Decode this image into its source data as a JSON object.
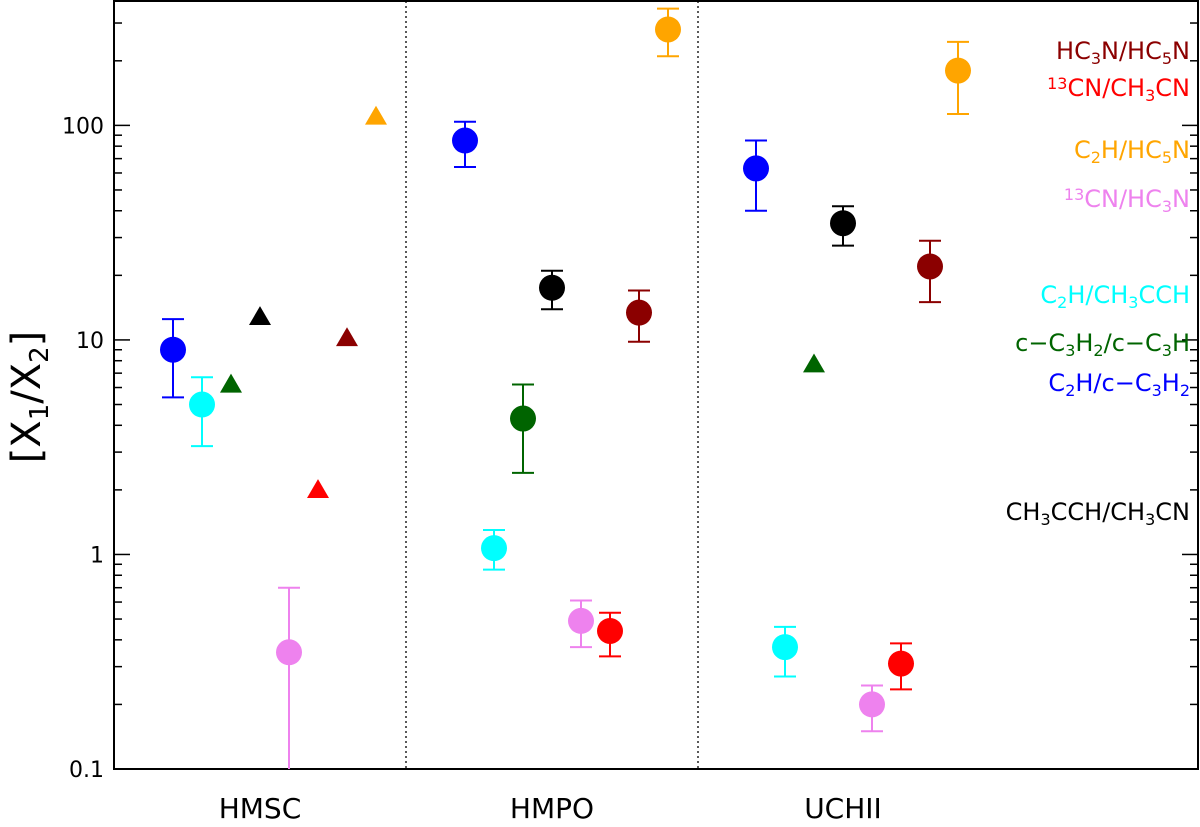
{
  "chart_data": {
    "type": "scatter",
    "y_scale": "log",
    "ylim": [
      0.1,
      380
    ],
    "ylabel": "[X1/X2]",
    "y_ticks": [
      "0.1",
      "1",
      "10",
      "100"
    ],
    "categories": [
      "HMSC",
      "HMPO",
      "UCHII"
    ],
    "series": [
      {
        "key": "c2h_c3h2",
        "color": "#0000ff",
        "points": [
          {
            "cat": "HMSC",
            "offset": -0.3,
            "y": 9.0,
            "lo": 5.4,
            "hi": 12.5,
            "marker": "circle"
          },
          {
            "cat": "HMPO",
            "offset": -0.3,
            "y": 85,
            "lo": 64,
            "hi": 104,
            "marker": "circle"
          },
          {
            "cat": "UCHII",
            "offset": -0.3,
            "y": 63,
            "lo": 40,
            "hi": 85,
            "marker": "circle"
          }
        ]
      },
      {
        "key": "c2h_ch3cch",
        "color": "#00ffff",
        "points": [
          {
            "cat": "HMSC",
            "offset": -0.2,
            "y": 5.0,
            "lo": 3.2,
            "hi": 6.7,
            "marker": "circle"
          },
          {
            "cat": "HMPO",
            "offset": -0.2,
            "y": 1.07,
            "lo": 0.85,
            "hi": 1.3,
            "marker": "circle"
          },
          {
            "cat": "UCHII",
            "offset": -0.2,
            "y": 0.37,
            "lo": 0.27,
            "hi": 0.46,
            "marker": "circle"
          }
        ]
      },
      {
        "key": "cc3h2_cc3h",
        "color": "#006400",
        "points": [
          {
            "cat": "HMSC",
            "offset": -0.1,
            "y": 6.2,
            "marker": "triangle"
          },
          {
            "cat": "HMPO",
            "offset": -0.1,
            "y": 4.3,
            "lo": 2.4,
            "hi": 6.2,
            "marker": "circle"
          },
          {
            "cat": "UCHII",
            "offset": -0.1,
            "y": 7.7,
            "marker": "triangle"
          }
        ]
      },
      {
        "key": "ch3cch_ch3cn",
        "color": "#000000",
        "points": [
          {
            "cat": "HMSC",
            "offset": 0.0,
            "y": 12.8,
            "marker": "triangle"
          },
          {
            "cat": "HMPO",
            "offset": 0.0,
            "y": 17.5,
            "lo": 13.9,
            "hi": 21,
            "marker": "circle"
          },
          {
            "cat": "UCHII",
            "offset": 0.0,
            "y": 35,
            "lo": 27.5,
            "hi": 42,
            "marker": "circle"
          }
        ]
      },
      {
        "key": "13cn_hc3n",
        "color": "#ee82ee",
        "points": [
          {
            "cat": "HMSC",
            "offset": 0.1,
            "y": 0.35,
            "lo": 0.09,
            "hi": 0.7,
            "marker": "circle"
          },
          {
            "cat": "HMPO",
            "offset": 0.1,
            "y": 0.49,
            "lo": 0.37,
            "hi": 0.61,
            "marker": "circle"
          },
          {
            "cat": "UCHII",
            "offset": 0.1,
            "y": 0.2,
            "lo": 0.15,
            "hi": 0.245,
            "marker": "circle"
          }
        ]
      },
      {
        "key": "13cn_ch3cn",
        "color": "#ff0000",
        "points": [
          {
            "cat": "HMSC",
            "offset": 0.2,
            "y": 2.0,
            "marker": "triangle"
          },
          {
            "cat": "HMPO",
            "offset": 0.2,
            "y": 0.44,
            "lo": 0.335,
            "hi": 0.535,
            "marker": "circle"
          },
          {
            "cat": "UCHII",
            "offset": 0.2,
            "y": 0.31,
            "lo": 0.235,
            "hi": 0.385,
            "marker": "circle"
          }
        ]
      },
      {
        "key": "hc3n_hc5n",
        "color": "#8b0000",
        "points": [
          {
            "cat": "HMSC",
            "offset": 0.3,
            "y": 10.2,
            "marker": "triangle"
          },
          {
            "cat": "HMPO",
            "offset": 0.3,
            "y": 13.4,
            "lo": 9.8,
            "hi": 17,
            "marker": "circle"
          },
          {
            "cat": "UCHII",
            "offset": 0.3,
            "y": 22,
            "lo": 15,
            "hi": 29,
            "marker": "circle"
          }
        ]
      },
      {
        "key": "c2h_hc5n",
        "color": "#ffa500",
        "points": [
          {
            "cat": "HMSC",
            "offset": 0.4,
            "y": 110,
            "marker": "triangle"
          },
          {
            "cat": "HMPO",
            "offset": 0.4,
            "y": 280,
            "lo": 210,
            "hi": 350,
            "marker": "circle"
          }
        ]
      }
    ],
    "legend": {
      "placement": "right",
      "sample_marker": {
        "color": "#ffa500",
        "y": 180,
        "lo": 113,
        "hi": 245
      },
      "entries": [
        {
          "color": "#8b0000",
          "parts": [
            [
              "HC",
              ""
            ],
            [
              "3",
              "sub"
            ],
            [
              "N/HC",
              ""
            ],
            [
              "5",
              "sub"
            ],
            [
              "N",
              ""
            ]
          ]
        },
        {
          "color": "#ff0000",
          "parts": [
            [
              "13",
              "sup"
            ],
            [
              "CN/CH",
              ""
            ],
            [
              "3",
              "sub"
            ],
            [
              "CN",
              ""
            ]
          ]
        },
        {
          "color": "#ffa500",
          "parts": [
            [
              "C",
              ""
            ],
            [
              "2",
              "sub"
            ],
            [
              "H/HC",
              ""
            ],
            [
              "5",
              "sub"
            ],
            [
              "N",
              ""
            ]
          ]
        },
        {
          "color": "#ee82ee",
          "parts": [
            [
              "13",
              "sup"
            ],
            [
              "CN/HC",
              ""
            ],
            [
              "3",
              "sub"
            ],
            [
              "N",
              ""
            ]
          ]
        },
        {
          "color": "#00ffff",
          "parts": [
            [
              "C",
              ""
            ],
            [
              "2",
              "sub"
            ],
            [
              "H/CH",
              ""
            ],
            [
              "3",
              "sub"
            ],
            [
              "CCH",
              ""
            ]
          ]
        },
        {
          "color": "#006400",
          "parts": [
            [
              "c−C",
              ""
            ],
            [
              "3",
              "sub"
            ],
            [
              "H",
              ""
            ],
            [
              "2",
              "sub"
            ],
            [
              "/c−C",
              ""
            ],
            [
              "3",
              "sub"
            ],
            [
              "H",
              ""
            ]
          ]
        },
        {
          "color": "#0000ff",
          "parts": [
            [
              "C",
              ""
            ],
            [
              "2",
              "sub"
            ],
            [
              "H/c−C",
              ""
            ],
            [
              "3",
              "sub"
            ],
            [
              "H",
              ""
            ],
            [
              "2",
              "sub"
            ]
          ]
        },
        {
          "color": "#000000",
          "parts": [
            [
              "CH",
              ""
            ],
            [
              "3",
              "sub"
            ],
            [
              "CCH/CH",
              ""
            ],
            [
              "3",
              "sub"
            ],
            [
              "CN",
              ""
            ]
          ]
        }
      ]
    }
  }
}
